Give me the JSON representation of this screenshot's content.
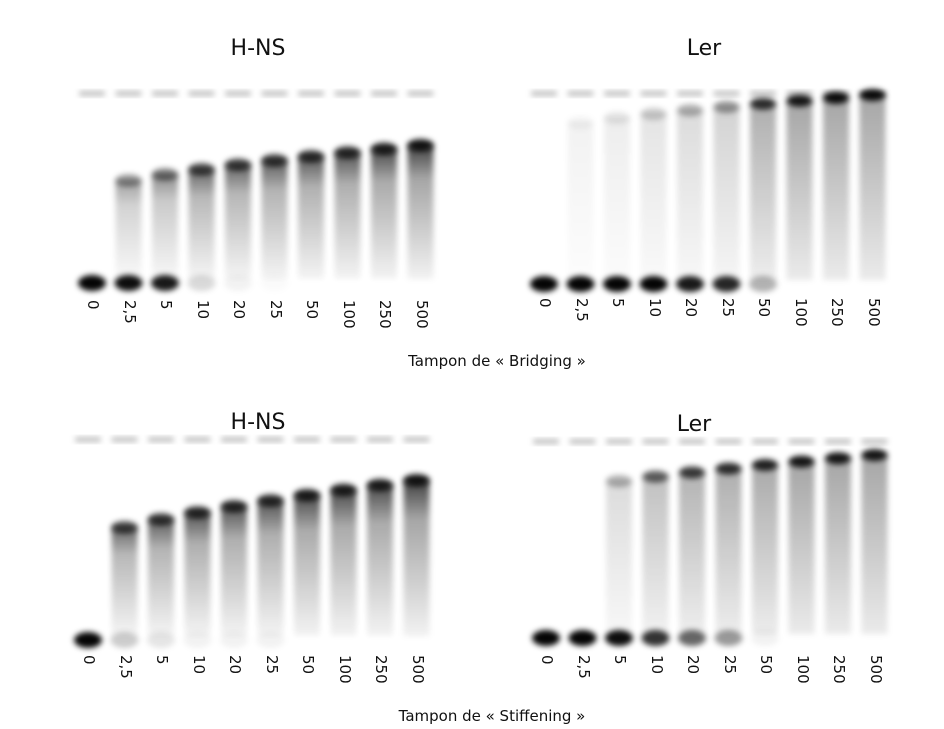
{
  "panels": [
    {
      "title": "H-NS",
      "lanes": [
        "0",
        "2,5",
        "5",
        "10",
        "20",
        "25",
        "50",
        "100",
        "250",
        "500"
      ],
      "free_dna_fraction": [
        1.0,
        0.95,
        0.9,
        0.15,
        0.05,
        0.02,
        0.0,
        0.0,
        0.0,
        0.0
      ],
      "complex_fraction": [
        0.0,
        0.4,
        0.5,
        0.7,
        0.72,
        0.75,
        0.78,
        0.8,
        0.85,
        0.9
      ]
    },
    {
      "title": "Ler",
      "lanes": [
        "0",
        "2,5",
        "5",
        "10",
        "20",
        "25",
        "50",
        "100",
        "250",
        "500"
      ],
      "free_dna_fraction": [
        1.0,
        1.0,
        1.0,
        1.0,
        0.9,
        0.85,
        0.3,
        0.0,
        0.0,
        0.0
      ],
      "complex_fraction": [
        0.0,
        0.05,
        0.1,
        0.2,
        0.3,
        0.4,
        0.8,
        0.9,
        0.95,
        0.95
      ]
    },
    {
      "title": "H-NS",
      "lanes": [
        "0",
        "2,5",
        "5",
        "10",
        "20",
        "25",
        "50",
        "100",
        "250",
        "500"
      ],
      "free_dna_fraction": [
        1.0,
        0.2,
        0.1,
        0.05,
        0.05,
        0.05,
        0.0,
        0.0,
        0.0,
        0.0
      ],
      "complex_fraction": [
        0.0,
        0.7,
        0.75,
        0.8,
        0.8,
        0.8,
        0.85,
        0.85,
        0.85,
        0.9
      ]
    },
    {
      "title": "Ler",
      "lanes": [
        "0",
        "2,5",
        "5",
        "10",
        "20",
        "25",
        "50",
        "100",
        "250",
        "500"
      ],
      "free_dna_fraction": [
        1.0,
        1.0,
        0.95,
        0.8,
        0.6,
        0.4,
        0.05,
        0.0,
        0.0,
        0.0
      ],
      "complex_fraction": [
        0.0,
        0.0,
        0.3,
        0.6,
        0.75,
        0.8,
        0.85,
        0.9,
        0.9,
        0.9
      ]
    }
  ],
  "captions": {
    "top": "Tampon de « Bridging »",
    "bottom": "Tampon de « Stiffening »"
  }
}
